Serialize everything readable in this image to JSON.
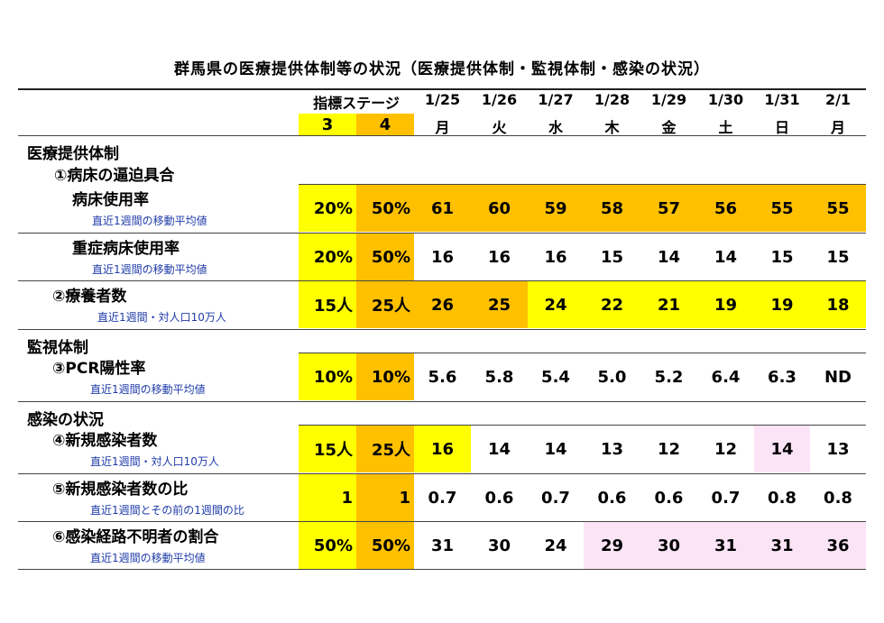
{
  "title": "群馬県の医療提供体制等の状況（医療提供体制・監視体制・感染の状況）",
  "header": {
    "stage_label": "指標ステージ",
    "stage3": "3",
    "stage4": "4",
    "dates": [
      "1/25",
      "1/26",
      "1/27",
      "1/28",
      "1/29",
      "1/30",
      "1/31",
      "2/1"
    ],
    "weekdays": [
      "月",
      "火",
      "水",
      "木",
      "金",
      "土",
      "日",
      "月"
    ]
  },
  "sections": {
    "medical": "医療提供体制",
    "bed_pressure": "①病床の逼迫具合",
    "monitoring": "監視体制",
    "infection": "感染の状況"
  },
  "rows": [
    {
      "label": "病床使用率",
      "sub": "直近1週間の移動平均値",
      "s3": "20%",
      "s4": "50%",
      "values": [
        "61",
        "60",
        "59",
        "58",
        "57",
        "56",
        "55",
        "55"
      ]
    },
    {
      "label": "重症病床使用率",
      "sub": "直近1週間の移動平均値",
      "s3": "20%",
      "s4": "50%",
      "values": [
        "16",
        "16",
        "16",
        "15",
        "14",
        "14",
        "15",
        "15"
      ]
    },
    {
      "label": "②療養者数",
      "sub": "直近1週間・対人口10万人",
      "s3": "15人",
      "s4": "25人",
      "values": [
        "26",
        "25",
        "24",
        "22",
        "21",
        "19",
        "19",
        "18"
      ]
    },
    {
      "label": "③PCR陽性率",
      "sub": "直近1週間の移動平均値",
      "s3": "10%",
      "s4": "10%",
      "values": [
        "5.6",
        "5.8",
        "5.4",
        "5.0",
        "5.2",
        "6.4",
        "6.3",
        "ND"
      ]
    },
    {
      "label": "④新規感染者数",
      "sub": "直近1週間・対人口10万人",
      "s3": "15人",
      "s4": "25人",
      "values": [
        "16",
        "14",
        "14",
        "13",
        "12",
        "12",
        "14",
        "13"
      ]
    },
    {
      "label": "⑤新規感染者数の比",
      "sub": "直近1週間とその前の1週間の比",
      "s3": "1",
      "s4": "1",
      "values": [
        "0.7",
        "0.6",
        "0.7",
        "0.6",
        "0.6",
        "0.7",
        "0.8",
        "0.8"
      ]
    },
    {
      "label": "⑥感染経路不明者の割合",
      "sub": "直近1週間の移動平均値",
      "s3": "50%",
      "s4": "50%",
      "values": [
        "31",
        "30",
        "24",
        "29",
        "30",
        "31",
        "31",
        "36"
      ]
    }
  ],
  "cell_levels": [
    [
      "orange",
      "orange",
      "orange",
      "orange",
      "orange",
      "orange",
      "orange",
      "orange"
    ],
    [
      "white",
      "white",
      "white",
      "white",
      "white",
      "white",
      "white",
      "white"
    ],
    [
      "orange",
      "orange",
      "yellow",
      "yellow",
      "yellow",
      "yellow",
      "yellow",
      "yellow"
    ],
    [
      "white",
      "white",
      "white",
      "white",
      "white",
      "white",
      "white",
      "white"
    ],
    [
      "yellow",
      "white",
      "white",
      "white",
      "white",
      "white",
      "pink",
      "white"
    ],
    [
      "white",
      "white",
      "white",
      "white",
      "white",
      "white",
      "white",
      "white"
    ],
    [
      "white",
      "white",
      "white",
      "pink",
      "pink",
      "pink",
      "pink",
      "pink"
    ]
  ],
  "colors": {
    "stage3": "#ffff00",
    "stage4": "#ffc000",
    "orange": "#ffc000",
    "yellow": "#ffff00",
    "pink": "#fce4f7",
    "white": "#ffffff"
  }
}
